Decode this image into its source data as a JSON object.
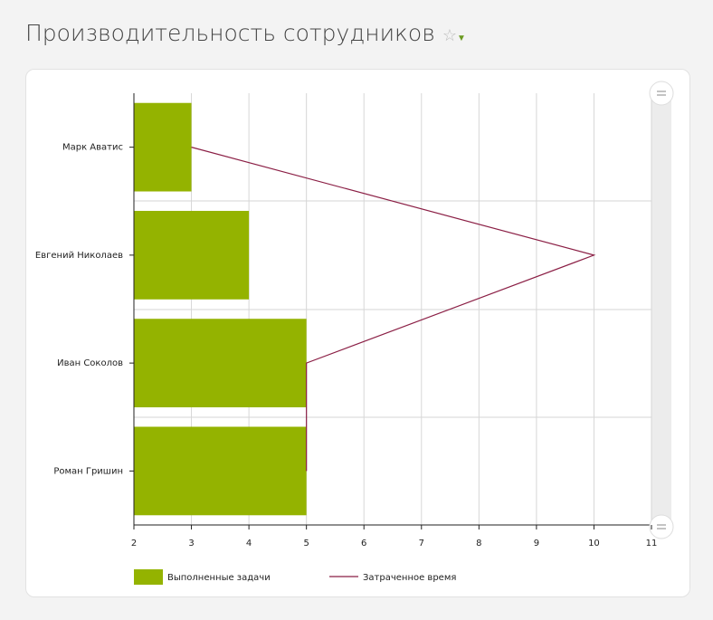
{
  "chart_data": {
    "type": "bar",
    "orientation": "horizontal",
    "title": "Производительность сотрудников",
    "categories": [
      "Марк Аватис",
      "Евгений Николаев",
      "Иван Соколов",
      "Роман Гришин"
    ],
    "series": [
      {
        "name": "Выполненные задачи",
        "color": "#94b300",
        "type": "bar",
        "values": [
          3,
          4,
          5,
          5
        ]
      },
      {
        "name": "Затраченное время",
        "color": "#8b1f45",
        "type": "line",
        "values": [
          3,
          10,
          5,
          5
        ]
      }
    ],
    "xlim": [
      2,
      11
    ],
    "xticks": [
      2,
      3,
      4,
      5,
      6,
      7,
      8,
      9,
      10,
      11
    ],
    "grid": true
  }
}
